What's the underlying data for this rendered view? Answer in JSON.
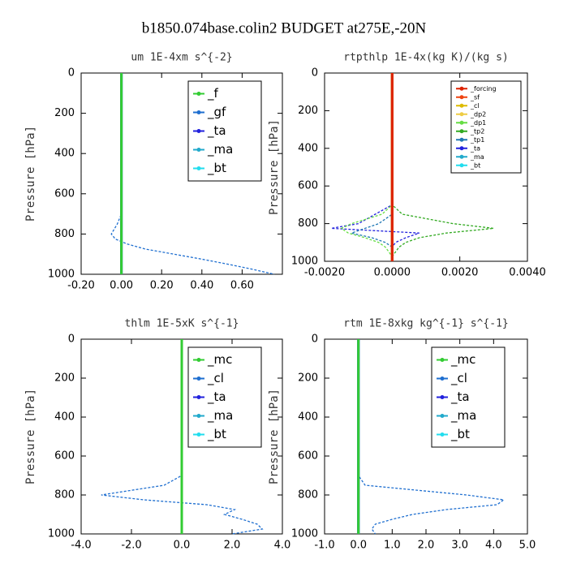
{
  "title": "b1850.074base.colin2  BUDGET at275E,-20N",
  "chart_data": [
    {
      "type": "profile",
      "title": "um   1E-4xm s^{-2}",
      "ylabel": "Pressure [hPa]",
      "levels": [
        0,
        100,
        200,
        300,
        400,
        500,
        600,
        700,
        750,
        800,
        825,
        850,
        875,
        900,
        925,
        950,
        975,
        1000
      ],
      "xlim": [
        -0.2,
        0.8
      ],
      "xticks": [
        {
          "value": -0.2,
          "label": "-0.20"
        },
        {
          "value": 0,
          "label": "0.00"
        },
        {
          "value": 0.2,
          "label": "0.20"
        },
        {
          "value": 0.4,
          "label": "0.40"
        },
        {
          "value": 0.6,
          "label": "0.60"
        }
      ],
      "ylim": [
        1000,
        0
      ],
      "yticks": [
        0,
        200,
        400,
        600,
        800,
        1000
      ],
      "series": [
        {
          "name": "_f",
          "color": "#33cc33",
          "values": [
            0,
            0,
            0,
            0,
            0,
            0,
            0,
            0,
            0,
            0,
            0,
            0,
            0,
            0,
            0,
            0,
            0,
            0
          ]
        },
        {
          "name": "_gf",
          "color": "#1f6fd0",
          "values": [
            0,
            0,
            0,
            0,
            0,
            0,
            0,
            0,
            -0.02,
            -0.05,
            -0.03,
            0.03,
            0.12,
            0.26,
            0.4,
            0.53,
            0.65,
            0.76
          ]
        },
        {
          "name": "_ta",
          "color": "#2222dd",
          "values": [
            0,
            0,
            0,
            0,
            0,
            0,
            0,
            0,
            0,
            0,
            0,
            0,
            0,
            0,
            0,
            0,
            0,
            0
          ]
        },
        {
          "name": "_ma",
          "color": "#22aacc",
          "values": [
            0,
            0,
            0,
            0,
            0,
            0,
            0,
            0,
            0,
            0,
            0,
            0,
            0,
            0,
            0,
            0,
            0,
            0
          ]
        },
        {
          "name": "_bt",
          "color": "#22ddee",
          "values": [
            0,
            0,
            0,
            0,
            0,
            0,
            0,
            0,
            0,
            0,
            0,
            0,
            0,
            0,
            0,
            0,
            0,
            0
          ]
        }
      ]
    },
    {
      "type": "profile",
      "title": "rtpthlp   1E-4x(kg K)/(kg s)",
      "ylabel": "Pressure [hPa]",
      "levels": [
        0,
        100,
        200,
        300,
        400,
        500,
        600,
        700,
        750,
        800,
        825,
        850,
        875,
        900,
        925,
        950,
        975,
        1000
      ],
      "xlim": [
        -0.002,
        0.004
      ],
      "xticks": [
        {
          "value": -0.002,
          "label": "-0.0020"
        },
        {
          "value": 0,
          "label": "0.0000"
        },
        {
          "value": 0.002,
          "label": "0.0020"
        },
        {
          "value": 0.004,
          "label": "0.0040"
        }
      ],
      "ylim": [
        1000,
        0
      ],
      "yticks": [
        0,
        200,
        400,
        600,
        800,
        1000
      ],
      "series": [
        {
          "name": "_forcing",
          "color": "#dd2200",
          "values": [
            0,
            0,
            0,
            0,
            0,
            0,
            0,
            0,
            0,
            0,
            0,
            0,
            0,
            0,
            0,
            0,
            0,
            0
          ]
        },
        {
          "name": "_sf",
          "color": "#ee4411",
          "values": [
            0,
            0,
            0,
            0,
            0,
            0,
            0,
            0,
            0,
            0,
            0,
            0,
            0,
            0,
            0,
            0,
            0,
            0
          ]
        },
        {
          "name": "_cl",
          "color": "#ddbb00",
          "values": [
            0,
            0,
            0,
            0,
            0,
            0,
            0,
            0,
            0,
            0,
            0,
            0,
            0,
            0,
            0,
            0,
            0,
            0
          ]
        },
        {
          "name": "_dp2",
          "color": "#eecc44",
          "values": [
            0,
            0,
            0,
            0,
            0,
            0,
            0,
            0,
            0,
            0,
            0,
            0,
            0,
            0,
            0,
            0,
            0,
            0
          ]
        },
        {
          "name": "_dp1",
          "color": "#66dd44",
          "values": [
            0,
            0,
            0,
            0,
            0,
            0,
            0,
            0,
            -0.0003,
            -0.0012,
            -0.0015,
            -0.0013,
            -0.0008,
            -0.0004,
            -0.0002,
            -0.0001,
            0,
            0
          ]
        },
        {
          "name": "_tp2",
          "color": "#33aa22",
          "values": [
            0,
            0,
            0,
            0,
            0,
            0,
            0,
            0,
            0.0003,
            0.0018,
            0.003,
            0.0016,
            0.0008,
            0.0004,
            0.0002,
            0.0001,
            0,
            0
          ]
        },
        {
          "name": "_tp1",
          "color": "#1f77b4",
          "values": [
            0,
            0,
            0,
            0,
            0,
            0,
            0,
            0,
            0,
            -0.0004,
            -0.0008,
            -0.0012,
            -0.0006,
            -0.0002,
            0,
            0,
            0,
            0
          ]
        },
        {
          "name": "_ta",
          "color": "#2222dd",
          "values": [
            0,
            0,
            0,
            0,
            0,
            0,
            0,
            0,
            -0.0005,
            -0.001,
            -0.0018,
            0.0008,
            0.0004,
            0.0001,
            0,
            0,
            0,
            0
          ]
        },
        {
          "name": "_ma",
          "color": "#22aacc",
          "values": [
            0,
            0,
            0,
            0,
            0,
            0,
            0,
            0,
            0,
            0,
            0,
            0,
            0,
            0,
            0,
            0,
            0,
            0
          ]
        },
        {
          "name": "_bt",
          "color": "#22ddee",
          "values": [
            0,
            0,
            0,
            0,
            0,
            0,
            0,
            0,
            0,
            0,
            0,
            0,
            0,
            0,
            0,
            0,
            0,
            0
          ]
        }
      ]
    },
    {
      "type": "profile",
      "title": "thlm   1E-5xK s^{-1}",
      "ylabel": "Pressure [hPa]",
      "levels": [
        0,
        100,
        200,
        300,
        400,
        500,
        600,
        700,
        750,
        800,
        825,
        850,
        875,
        900,
        925,
        950,
        975,
        1000
      ],
      "xlim": [
        -4,
        4
      ],
      "xticks": [
        {
          "value": -4,
          "label": "-4.0"
        },
        {
          "value": -2,
          "label": "-2.0"
        },
        {
          "value": 0,
          "label": "0.0"
        },
        {
          "value": 2,
          "label": "2.0"
        },
        {
          "value": 4,
          "label": "4.0"
        }
      ],
      "ylim": [
        1000,
        0
      ],
      "yticks": [
        0,
        200,
        400,
        600,
        800,
        1000
      ],
      "series": [
        {
          "name": "_mc",
          "color": "#33cc33",
          "values": [
            0,
            0,
            0,
            0,
            0,
            0,
            0,
            0,
            0,
            0,
            0,
            0,
            0,
            0,
            0,
            0,
            0,
            0
          ]
        },
        {
          "name": "_cl",
          "color": "#1f6fd0",
          "values": [
            0,
            0,
            0,
            0,
            0,
            0,
            0,
            0,
            -0.7,
            -3.2,
            -1.5,
            1.0,
            2.1,
            1.7,
            2.4,
            3.0,
            3.2,
            2.0
          ]
        },
        {
          "name": "_ta",
          "color": "#2222dd",
          "values": [
            0,
            0,
            0,
            0,
            0,
            0,
            0,
            0,
            0,
            0,
            0,
            0,
            0,
            0,
            0,
            0,
            0,
            0
          ]
        },
        {
          "name": "_ma",
          "color": "#22aacc",
          "values": [
            0,
            0,
            0,
            0,
            0,
            0,
            0,
            0,
            0,
            0,
            0,
            0,
            0,
            0,
            0,
            0,
            0,
            0
          ]
        },
        {
          "name": "_bt",
          "color": "#22ddee",
          "values": [
            0,
            0,
            0,
            0,
            0,
            0,
            0,
            0,
            0,
            0,
            0,
            0,
            0,
            0,
            0,
            0,
            0,
            0
          ]
        }
      ]
    },
    {
      "type": "profile",
      "title": "rtm   1E-8xkg kg^{-1} s^{-1}",
      "ylabel": "Pressure [hPa]",
      "levels": [
        0,
        100,
        200,
        300,
        400,
        500,
        600,
        700,
        750,
        800,
        825,
        850,
        875,
        900,
        925,
        950,
        975,
        1000
      ],
      "xlim": [
        -1,
        5
      ],
      "xticks": [
        {
          "value": -1,
          "label": "-1.0"
        },
        {
          "value": 0,
          "label": "0.0"
        },
        {
          "value": 1,
          "label": "1.0"
        },
        {
          "value": 2,
          "label": "2.0"
        },
        {
          "value": 3,
          "label": "3.0"
        },
        {
          "value": 4,
          "label": "4.0"
        },
        {
          "value": 5,
          "label": "5.0"
        }
      ],
      "ylim": [
        1000,
        0
      ],
      "yticks": [
        0,
        200,
        400,
        600,
        800,
        1000
      ],
      "series": [
        {
          "name": "_mc",
          "color": "#33cc33",
          "values": [
            0,
            0,
            0,
            0,
            0,
            0,
            0,
            0,
            0,
            0,
            0,
            0,
            0,
            0,
            0,
            0,
            0,
            0
          ]
        },
        {
          "name": "_cl",
          "color": "#1f6fd0",
          "values": [
            0,
            0,
            0,
            0,
            0,
            0,
            0,
            0,
            0.2,
            3.2,
            4.3,
            4.1,
            2.6,
            1.6,
            1.0,
            0.5,
            0.4,
            0.5
          ]
        },
        {
          "name": "_ta",
          "color": "#2222dd",
          "values": [
            0,
            0,
            0,
            0,
            0,
            0,
            0,
            0,
            0,
            0,
            0,
            0,
            0,
            0,
            0,
            0,
            0,
            0
          ]
        },
        {
          "name": "_ma",
          "color": "#22aacc",
          "values": [
            0,
            0,
            0,
            0,
            0,
            0,
            0,
            0,
            0,
            0,
            0,
            0,
            0,
            0,
            0,
            0,
            0,
            0
          ]
        },
        {
          "name": "_bt",
          "color": "#22ddee",
          "values": [
            0,
            0,
            0,
            0,
            0,
            0,
            0,
            0,
            0,
            0,
            0,
            0,
            0,
            0,
            0,
            0,
            0,
            0
          ]
        }
      ]
    }
  ]
}
